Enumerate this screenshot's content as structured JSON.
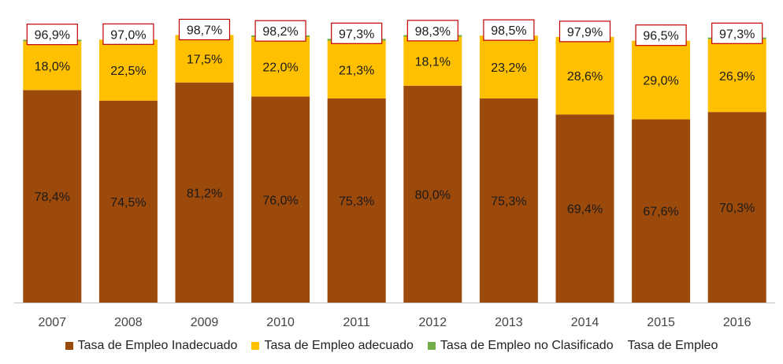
{
  "chart_data": {
    "type": "bar",
    "stacked": true,
    "categories": [
      "2007",
      "2008",
      "2009",
      "2010",
      "2011",
      "2012",
      "2013",
      "2014",
      "2015",
      "2016"
    ],
    "series": [
      {
        "name": "Tasa de Empleo Inadecuado",
        "color": "#9C4A0C",
        "values": [
          78.4,
          74.5,
          81.2,
          76.0,
          75.3,
          80.0,
          75.3,
          69.4,
          67.6,
          70.3
        ],
        "labels": [
          "78,4%",
          "74,5%",
          "81,2%",
          "76,0%",
          "75,3%",
          "80,0%",
          "75,3%",
          "69,4%",
          "67,6%",
          "70,3%"
        ]
      },
      {
        "name": "Tasa de Empleo adecuado",
        "color": "#FFC000",
        "values": [
          18.0,
          22.5,
          17.5,
          22.0,
          21.3,
          18.1,
          23.2,
          28.6,
          29.0,
          26.9
        ],
        "labels": [
          "18,0%",
          "22,5%",
          "17,5%",
          "22,0%",
          "21,3%",
          "18,1%",
          "23,2%",
          "28,6%",
          "29,0%",
          "26,9%"
        ]
      },
      {
        "name": "Tasa de Empleo no Clasificado",
        "color": "#70AD47",
        "values": [
          0.5,
          0.0,
          0.0,
          0.2,
          0.7,
          0.2,
          0.0,
          0.0,
          0.0,
          0.1
        ]
      }
    ],
    "total": {
      "name": "Tasa de Empleo",
      "values": [
        96.9,
        97.0,
        98.7,
        98.2,
        97.3,
        98.3,
        98.5,
        97.9,
        96.5,
        97.3
      ],
      "labels": [
        "96,9%",
        "97,0%",
        "98,7%",
        "98,2%",
        "97,3%",
        "98,3%",
        "98,5%",
        "97,9%",
        "96,5%",
        "97,3%"
      ],
      "box_color": "#C00000"
    },
    "ylim": [
      0,
      100
    ],
    "title": "",
    "xlabel": "",
    "ylabel": "",
    "grid": false,
    "legend_position": "bottom"
  }
}
